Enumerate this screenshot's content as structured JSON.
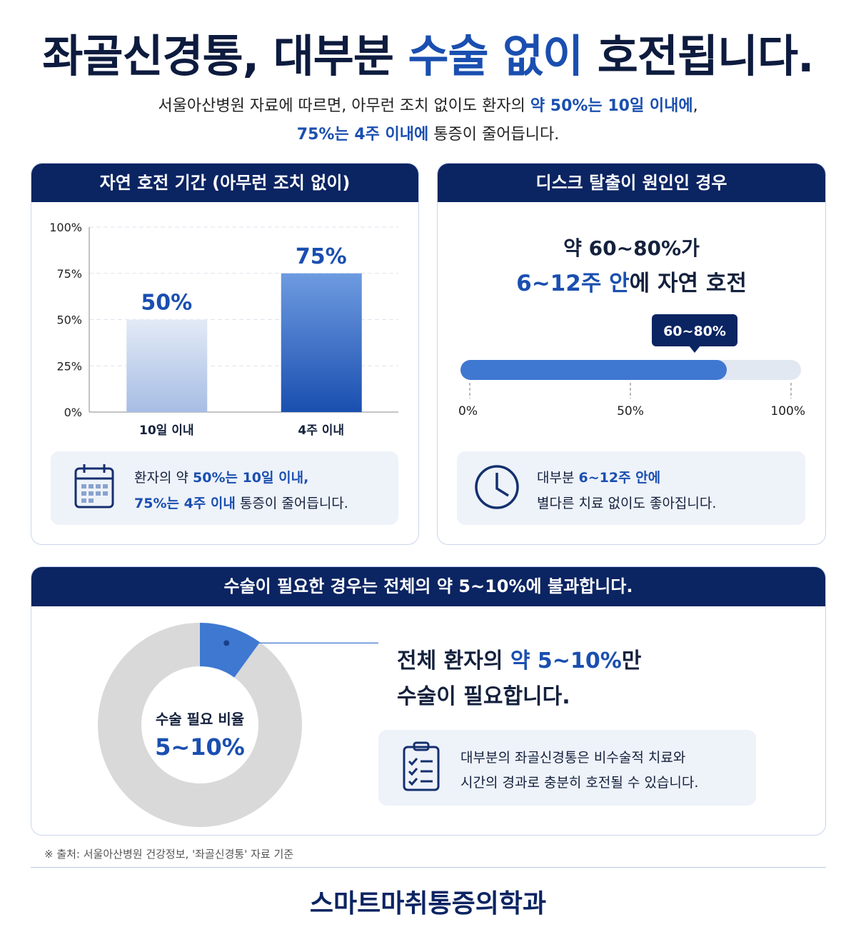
{
  "header": {
    "title": [
      "좌골신경통, 대부분 ",
      "수술 없이",
      " 호전됩니다."
    ],
    "subtitle": [
      [
        "서울아산병원 자료에 따르면, 아무런 조치 없이도 환자의 ",
        "약 50%는 10일 이내에",
        ","
      ],
      [
        "75%는 4주 이내에",
        " 통증이 줄어듭니다."
      ]
    ]
  },
  "chart_data": [
    {
      "type": "bar",
      "title": "자연 호전 기간 (아무런 조치 없이)",
      "categories": [
        "10일 이내",
        "4주 이내"
      ],
      "values": [
        50,
        75
      ],
      "value_labels": [
        "50%",
        "75%"
      ],
      "ylim": [
        0,
        100
      ],
      "yticks": [
        {
          "value": 0,
          "label": "0%"
        },
        {
          "value": 25,
          "label": "25%"
        },
        {
          "value": 50,
          "label": "50%"
        },
        {
          "value": 75,
          "label": "75%"
        },
        {
          "value": 100,
          "label": "100%"
        }
      ],
      "grid": true,
      "color": "#1a4fb0",
      "note": [
        [
          "환자의 약 ",
          "50%는 10일 이내,"
        ],
        [
          "75%는 4주 이내",
          " 통증이 줄어듭니다."
        ]
      ]
    },
    {
      "type": "progress",
      "title": "디스크 탈출이 원인인 경우",
      "headline": [
        [
          "약 60~80%가"
        ],
        [
          "6~12주 안",
          "에 자연 호전"
        ]
      ],
      "range": [
        60,
        80
      ],
      "range_label": "60~80%",
      "xlim": [
        0,
        100
      ],
      "xticks": [
        {
          "value": 0,
          "label": "0%"
        },
        {
          "value": 50,
          "label": "50%"
        },
        {
          "value": 100,
          "label": "100%"
        }
      ],
      "color": "#3f78d1",
      "note": [
        [
          "대부분 ",
          "6~12주 안에"
        ],
        [
          "별다른 치료 없이도 좋아집니다."
        ]
      ]
    },
    {
      "type": "donut",
      "title": "수술이 필요한 경우는 전체의 약 5~10%에 불과합니다.",
      "center_label": "수술 필요 비율",
      "range": [
        5,
        10
      ],
      "range_label": "5~10%",
      "color": "#3f78d1",
      "headline": [
        [
          "전체 환자의 ",
          "약 5~10%",
          "만"
        ],
        [
          "수술이 필요합니다."
        ]
      ],
      "note": [
        [
          "대부분의 좌골신경통은 비수술적 치료와"
        ],
        [
          "시간의 경과로 충분히 호전될 수 있습니다."
        ]
      ]
    }
  ],
  "source": "※ 출처: 서울아산병원 건강정보, '좌골신경통' 자료 기준",
  "footer": "스마트마취통증의학과"
}
